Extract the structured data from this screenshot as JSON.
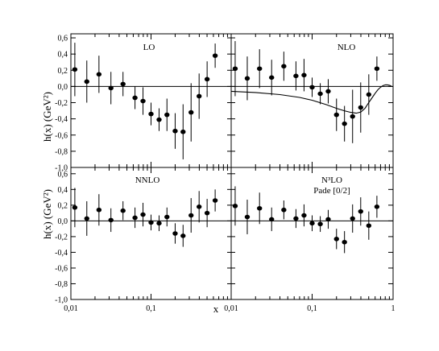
{
  "figure": {
    "ylabel": "h(x) (GeV²)",
    "xlabel": "x",
    "y_ticks": [
      {
        "value": 0.6,
        "label": "0,6"
      },
      {
        "value": 0.4,
        "label": "0,4"
      },
      {
        "value": 0.2,
        "label": "0,2"
      },
      {
        "value": 0.0,
        "label": "0,0"
      },
      {
        "value": -0.2,
        "label": "-0,2"
      },
      {
        "value": -0.4,
        "label": "-0,4"
      },
      {
        "value": -0.6,
        "label": "-0,6"
      },
      {
        "value": -0.8,
        "label": "-0,8"
      },
      {
        "value": -1.0,
        "label": "-1,0"
      }
    ],
    "x_ticks_left": [
      {
        "value": 0.01,
        "label": "0,01"
      },
      {
        "value": 0.1,
        "label": "0,1"
      }
    ],
    "x_ticks_right": [
      {
        "value": 0.01,
        "label": "0,01"
      },
      {
        "value": 0.1,
        "label": "0,1"
      },
      {
        "value": 1,
        "label": "1"
      }
    ]
  },
  "chart_data": [
    {
      "type": "scatter",
      "title": "LO",
      "subtitle": "",
      "xscale": "log",
      "xlim": [
        0.01,
        1
      ],
      "ylim": [
        -1.0,
        0.65
      ],
      "x": [
        0.0112,
        0.0158,
        0.0224,
        0.0316,
        0.0447,
        0.0631,
        0.0794,
        0.1,
        0.126,
        0.158,
        0.2,
        0.251,
        0.316,
        0.398,
        0.501,
        0.631
      ],
      "y": [
        0.21,
        0.06,
        0.15,
        -0.02,
        0.03,
        -0.14,
        -0.18,
        -0.34,
        -0.41,
        -0.35,
        -0.55,
        -0.56,
        -0.32,
        -0.12,
        0.09,
        0.38
      ],
      "yerr": [
        0.33,
        0.26,
        0.23,
        0.2,
        0.15,
        0.14,
        0.17,
        0.14,
        0.14,
        0.2,
        0.22,
        0.34,
        0.36,
        0.28,
        0.22,
        0.15
      ]
    },
    {
      "type": "scatter",
      "title": "NLO",
      "subtitle": "",
      "xscale": "log",
      "xlim": [
        0.01,
        1
      ],
      "ylim": [
        -1.0,
        0.65
      ],
      "x": [
        0.0112,
        0.0158,
        0.0224,
        0.0316,
        0.0447,
        0.0631,
        0.0794,
        0.1,
        0.126,
        0.158,
        0.2,
        0.251,
        0.316,
        0.398,
        0.501,
        0.631
      ],
      "y": [
        0.22,
        0.1,
        0.22,
        0.11,
        0.25,
        0.13,
        0.14,
        -0.01,
        -0.09,
        -0.06,
        -0.35,
        -0.46,
        -0.37,
        -0.26,
        -0.1,
        0.22
      ],
      "yerr": [
        0.34,
        0.27,
        0.24,
        0.22,
        0.18,
        0.18,
        0.2,
        0.12,
        0.13,
        0.15,
        0.2,
        0.22,
        0.33,
        0.31,
        0.25,
        0.15
      ],
      "curve": {
        "x": [
          0.01,
          0.02,
          0.04,
          0.07,
          0.1,
          0.15,
          0.2,
          0.25,
          0.3,
          0.35,
          0.4,
          0.45,
          0.5,
          0.55,
          0.6,
          0.65,
          0.7,
          0.75,
          0.8,
          0.85,
          0.9,
          0.95
        ],
        "y": [
          -0.06,
          -0.075,
          -0.1,
          -0.135,
          -0.17,
          -0.225,
          -0.27,
          -0.3,
          -0.32,
          -0.33,
          -0.315,
          -0.27,
          -0.2,
          -0.14,
          -0.085,
          -0.04,
          -0.01,
          0.01,
          0.02,
          0.02,
          0.015,
          0.005
        ]
      }
    },
    {
      "type": "scatter",
      "title": "NNLO",
      "subtitle": "",
      "xscale": "log",
      "xlim": [
        0.01,
        1
      ],
      "ylim": [
        -1.0,
        0.65
      ],
      "x": [
        0.0112,
        0.0158,
        0.0224,
        0.0316,
        0.0447,
        0.0631,
        0.0794,
        0.1,
        0.126,
        0.158,
        0.2,
        0.251,
        0.316,
        0.398,
        0.501,
        0.631
      ],
      "y": [
        0.17,
        0.03,
        0.14,
        0.01,
        0.13,
        0.04,
        0.08,
        -0.02,
        -0.03,
        0.05,
        -0.16,
        -0.19,
        0.07,
        0.18,
        0.1,
        0.26
      ],
      "yerr": [
        0.25,
        0.22,
        0.2,
        0.15,
        0.12,
        0.13,
        0.15,
        0.1,
        0.1,
        0.12,
        0.13,
        0.14,
        0.22,
        0.2,
        0.18,
        0.14
      ]
    },
    {
      "type": "scatter",
      "title": "N³LO",
      "subtitle": "Pade [0/2]",
      "xscale": "log",
      "xlim": [
        0.01,
        1
      ],
      "ylim": [
        -1.0,
        0.65
      ],
      "x": [
        0.0112,
        0.0158,
        0.0224,
        0.0316,
        0.0447,
        0.0631,
        0.0794,
        0.1,
        0.126,
        0.158,
        0.2,
        0.251,
        0.316,
        0.398,
        0.501,
        0.631
      ],
      "y": [
        0.19,
        0.05,
        0.16,
        0.02,
        0.14,
        0.03,
        0.07,
        -0.03,
        -0.04,
        0.02,
        -0.23,
        -0.27,
        0.03,
        0.12,
        -0.06,
        0.18
      ],
      "yerr": [
        0.25,
        0.22,
        0.2,
        0.15,
        0.12,
        0.12,
        0.14,
        0.1,
        0.1,
        0.12,
        0.13,
        0.14,
        0.18,
        0.18,
        0.18,
        0.14
      ]
    }
  ]
}
